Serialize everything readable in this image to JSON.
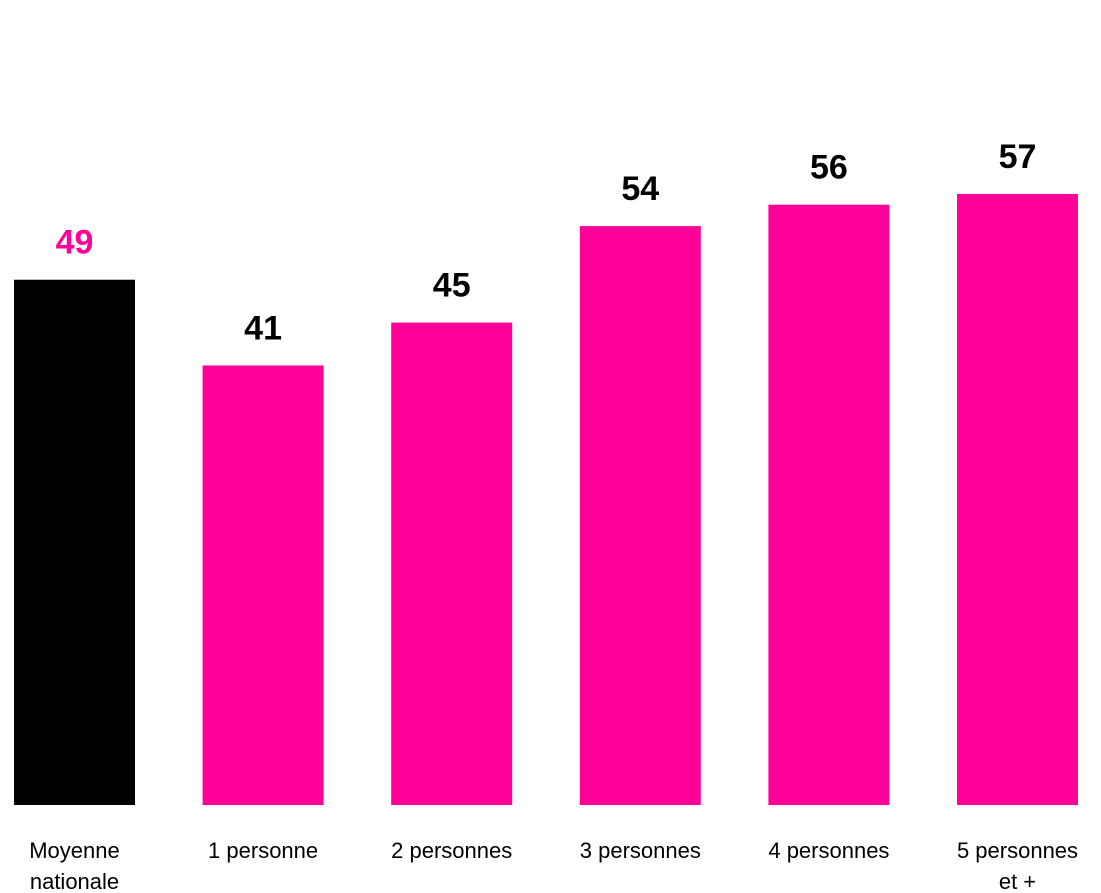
{
  "chart_data": {
    "type": "bar",
    "categories": [
      [
        "Moyenne",
        "nationale"
      ],
      [
        "1 personne"
      ],
      [
        "2 personnes"
      ],
      [
        "3 personnes"
      ],
      [
        "4 personnes"
      ],
      [
        "5 personnes",
        "et +"
      ]
    ],
    "values": [
      49,
      41,
      45,
      54,
      56,
      57
    ],
    "bar_colors": [
      "#000000",
      "#ff0099",
      "#ff0099",
      "#ff0099",
      "#ff0099",
      "#ff0099"
    ],
    "value_label_colors": [
      "#ff0099",
      "#000000",
      "#000000",
      "#000000",
      "#000000",
      "#000000"
    ],
    "title": "",
    "xlabel": "",
    "ylabel": "",
    "ylim": [
      0,
      60
    ],
    "grid": false,
    "legend": "none"
  }
}
